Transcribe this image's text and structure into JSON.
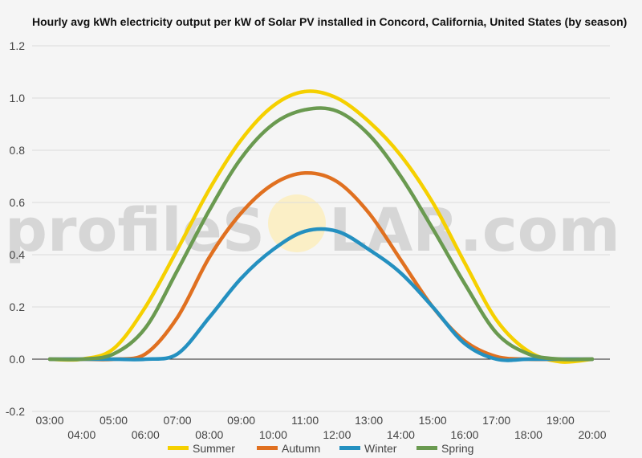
{
  "watermark": {
    "prefix": "profileS",
    "circle_letter": "O",
    "suffix": "LAR.com"
  },
  "chart_data": {
    "type": "line",
    "title": "Hourly avg kWh electricity output per kW of Solar PV installed in Concord, California, United States (by season)",
    "xlabel": "",
    "ylabel": "",
    "ylim": [
      -0.2,
      1.2
    ],
    "yticks": [
      -0.2,
      0.0,
      0.2,
      0.4,
      0.6,
      0.8,
      1.0,
      1.2
    ],
    "ytick_labels": [
      "-0.2",
      "0.0",
      "0.2",
      "0.4",
      "0.6",
      "0.8",
      "1.0",
      "1.2"
    ],
    "xlim": [
      3,
      20
    ],
    "xticks": [
      3,
      4,
      5,
      6,
      7,
      8,
      9,
      10,
      11,
      12,
      13,
      14,
      15,
      16,
      17,
      18,
      19,
      20
    ],
    "xtick_labels": [
      "03:00",
      "04:00",
      "05:00",
      "06:00",
      "07:00",
      "08:00",
      "09:00",
      "10:00",
      "11:00",
      "12:00",
      "13:00",
      "14:00",
      "15:00",
      "16:00",
      "17:00",
      "18:00",
      "19:00",
      "20:00"
    ],
    "grid": true,
    "legend_position": "bottom",
    "x": [
      3,
      4,
      5,
      6,
      7,
      8,
      9,
      10,
      11,
      12,
      13,
      14,
      15,
      16,
      17,
      18,
      19,
      20
    ],
    "series": [
      {
        "name": "Summer",
        "color": "#f5d000",
        "values": [
          0.0,
          0.0,
          0.04,
          0.2,
          0.42,
          0.65,
          0.84,
          0.97,
          1.025,
          1.0,
          0.91,
          0.78,
          0.6,
          0.37,
          0.15,
          0.03,
          -0.01,
          0.0
        ]
      },
      {
        "name": "Autumn",
        "color": "#e07020",
        "values": [
          0.0,
          0.0,
          0.0,
          0.02,
          0.16,
          0.39,
          0.56,
          0.67,
          0.713,
          0.68,
          0.56,
          0.38,
          0.2,
          0.07,
          0.01,
          0.0,
          0.0,
          0.0
        ]
      },
      {
        "name": "Winter",
        "color": "#2490c0",
        "values": [
          0.0,
          0.0,
          0.0,
          0.0,
          0.02,
          0.16,
          0.31,
          0.42,
          0.49,
          0.49,
          0.42,
          0.33,
          0.2,
          0.06,
          0.0,
          0.0,
          0.0,
          0.0
        ]
      },
      {
        "name": "Spring",
        "color": "#6a9a50",
        "values": [
          0.0,
          0.0,
          0.02,
          0.12,
          0.34,
          0.57,
          0.77,
          0.9,
          0.955,
          0.95,
          0.86,
          0.7,
          0.5,
          0.29,
          0.1,
          0.02,
          0.0,
          0.0
        ]
      }
    ]
  }
}
